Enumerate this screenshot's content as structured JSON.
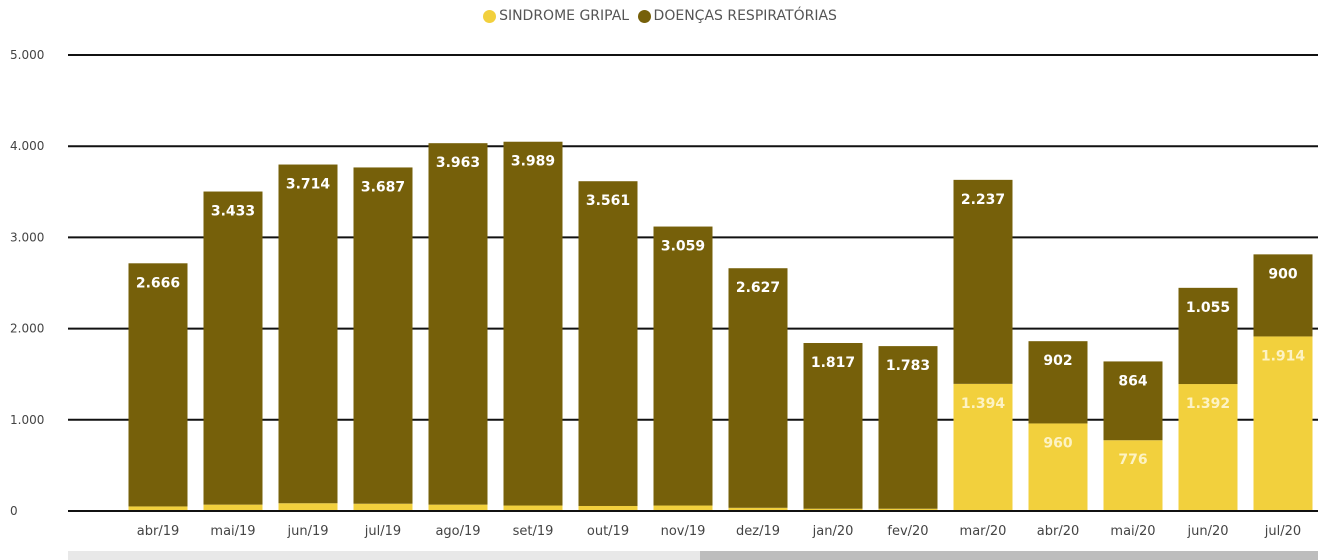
{
  "chart_data": {
    "type": "bar",
    "stacked": true,
    "categories": [
      "abr/19",
      "mai/19",
      "jun/19",
      "jul/19",
      "ago/19",
      "set/19",
      "out/19",
      "nov/19",
      "dez/19",
      "jan/20",
      "fev/20",
      "mar/20",
      "abr/20",
      "mai/20",
      "jun/20",
      "jul/20"
    ],
    "series": [
      {
        "name": "SINDROME GRIPAL",
        "color": "#F2D03D",
        "values": [
          50,
          70,
          85,
          80,
          70,
          60,
          55,
          60,
          35,
          25,
          25,
          1394,
          960,
          776,
          1392,
          1914
        ],
        "labels": [
          "",
          "",
          "",
          "",
          "",
          "",
          "",
          "",
          "",
          "",
          "",
          "1.394",
          "960",
          "776",
          "1.392",
          "1.914"
        ]
      },
      {
        "name": "DOENÇAS RESPIRATÓRIAS",
        "color": "#76600A",
        "values": [
          2666,
          3433,
          3714,
          3687,
          3963,
          3989,
          3561,
          3059,
          2627,
          1817,
          1783,
          2237,
          902,
          864,
          1055,
          900
        ],
        "labels": [
          "2.666",
          "3.433",
          "3.714",
          "3.687",
          "3.963",
          "3.989",
          "3.561",
          "3.059",
          "2.627",
          "1.817",
          "1.783",
          "2.237",
          "902",
          "864",
          "1.055",
          "900"
        ]
      }
    ],
    "y_ticks": [
      0,
      1000,
      2000,
      3000,
      4000,
      5000
    ],
    "y_tick_labels": [
      "0",
      "1.000",
      "2.000",
      "3.000",
      "4.000",
      "5.000"
    ],
    "ylim": [
      0,
      5000
    ],
    "grid": true,
    "legend_position": "top-center",
    "title": "",
    "xlabel": "",
    "ylabel": ""
  }
}
